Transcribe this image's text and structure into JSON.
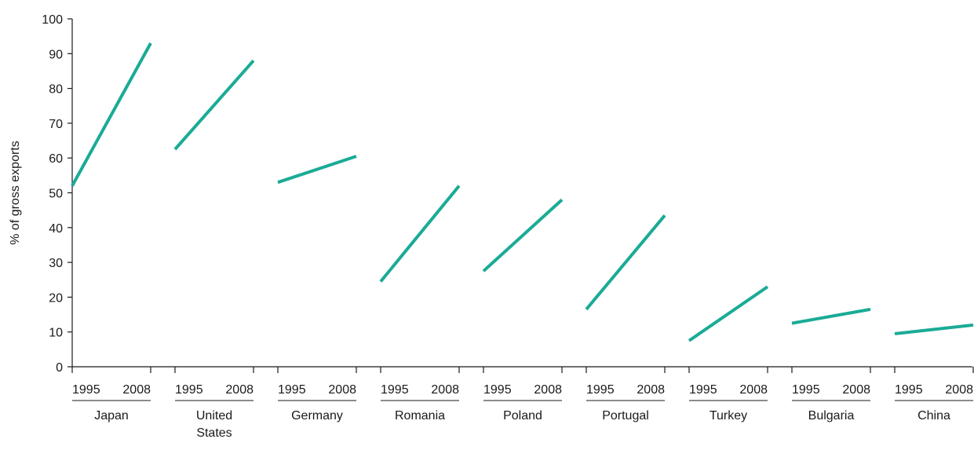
{
  "chart_data": {
    "type": "line",
    "ylabel": "% of gross exports",
    "ylim": [
      0,
      100
    ],
    "yticks": [
      0,
      10,
      20,
      30,
      40,
      50,
      60,
      70,
      80,
      90,
      100
    ],
    "years": [
      "1995",
      "2008"
    ],
    "series_color": "#1aab96",
    "groups": [
      {
        "country": [
          "Japan"
        ],
        "values": [
          52,
          93
        ]
      },
      {
        "country": [
          "United",
          "States"
        ],
        "values": [
          62.5,
          88
        ]
      },
      {
        "country": [
          "Germany"
        ],
        "values": [
          53,
          60.5
        ]
      },
      {
        "country": [
          "Romania"
        ],
        "values": [
          24.5,
          52
        ]
      },
      {
        "country": [
          "Poland"
        ],
        "values": [
          27.5,
          48
        ]
      },
      {
        "country": [
          "Portugal"
        ],
        "values": [
          16.5,
          43.5
        ]
      },
      {
        "country": [
          "Turkey"
        ],
        "values": [
          7.5,
          23
        ]
      },
      {
        "country": [
          "Bulgaria"
        ],
        "values": [
          12.5,
          16.5
        ]
      },
      {
        "country": [
          "China"
        ],
        "values": [
          9.5,
          12
        ]
      }
    ]
  }
}
